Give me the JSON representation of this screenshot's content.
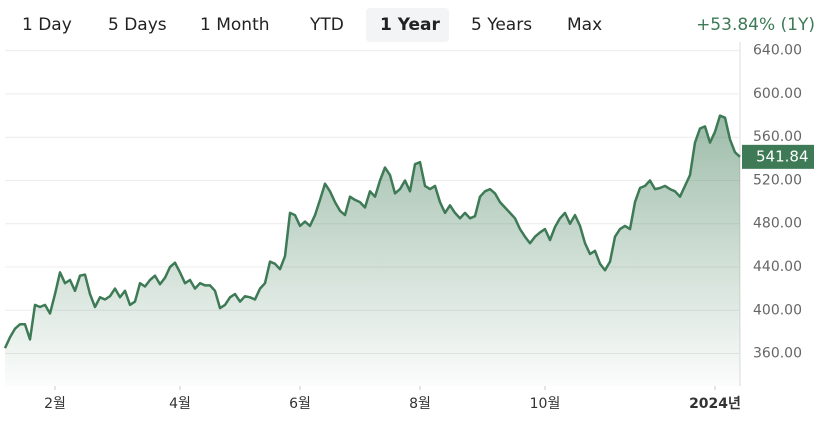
{
  "tabs": [
    "1 Day",
    "5 Days",
    "1 Month",
    "YTD",
    "1 Year",
    "5 Years",
    "Max"
  ],
  "active_tab": 4,
  "change": "+53.84% (1Y)",
  "chart_data": {
    "type": "line",
    "categories": [
      null,
      null,
      null,
      null,
      null,
      null,
      null,
      null,
      null,
      null,
      "2월",
      null,
      null,
      null,
      null,
      null,
      null,
      null,
      null,
      null,
      null,
      null,
      null,
      null,
      null,
      null,
      null,
      null,
      null,
      null,
      null,
      null,
      null,
      null,
      null,
      "4월",
      null,
      null,
      null,
      null,
      null,
      null,
      null,
      null,
      null,
      null,
      null,
      null,
      null,
      null,
      null,
      null,
      null,
      null,
      null,
      null,
      null,
      null,
      null,
      "6월",
      null,
      null,
      null,
      null,
      null,
      null,
      null,
      null,
      null,
      null,
      null,
      null,
      null,
      null,
      null,
      null,
      null,
      null,
      null,
      null,
      null,
      null,
      null,
      "8월",
      null,
      null,
      null,
      null,
      null,
      null,
      null,
      null,
      null,
      null,
      null,
      null,
      null,
      null,
      null,
      null,
      null,
      null,
      null,
      null,
      null,
      null,
      null,
      null,
      "10월",
      null,
      null,
      null,
      null,
      null,
      null,
      null,
      null,
      null,
      null,
      null,
      null,
      null,
      null,
      null,
      null,
      null,
      null,
      null,
      null,
      null,
      null,
      null,
      null,
      null,
      null,
      null,
      null,
      null,
      null,
      null,
      null,
      null,
      "2024년",
      null,
      null,
      null,
      null,
      null
    ],
    "series": [
      {
        "color": "#3d7a55",
        "values": [
          365,
          375,
          383,
          387,
          387,
          373,
          405,
          403,
          405,
          397,
          415,
          435,
          425,
          428,
          418,
          432,
          433,
          415,
          403,
          412,
          410,
          413,
          420,
          412,
          418,
          405,
          408,
          425,
          422,
          428,
          432,
          424,
          430,
          440,
          444,
          435,
          425,
          428,
          420,
          425,
          423,
          423,
          418,
          402,
          405,
          412,
          415,
          408,
          413,
          412,
          410,
          420,
          425,
          445,
          443,
          438,
          450,
          490,
          488,
          478,
          482,
          478,
          488,
          502,
          517,
          510,
          500,
          492,
          488,
          505,
          502,
          500,
          495,
          510,
          505,
          520,
          532,
          525,
          508,
          512,
          520,
          510,
          535,
          537,
          515,
          512,
          515,
          500,
          490,
          497,
          490,
          485,
          490,
          485,
          487,
          505,
          510,
          512,
          508,
          500,
          495,
          490,
          485,
          475,
          468,
          462,
          468,
          472,
          475,
          465,
          477,
          485,
          490,
          480,
          488,
          478,
          462,
          452,
          455,
          443,
          437,
          445,
          468,
          475,
          478,
          475,
          500,
          513,
          515,
          520,
          512,
          513,
          515,
          512,
          510,
          505,
          515,
          525,
          555,
          568,
          570,
          555,
          565,
          580,
          578,
          558,
          546,
          541.84
        ]
      }
    ],
    "ylim": [
      330,
      648
    ],
    "yticks": [
      {
        "value": 360,
        "label": "360.00"
      },
      {
        "value": 400,
        "label": "400.00"
      },
      {
        "value": 440,
        "label": "440.00"
      },
      {
        "value": 480,
        "label": "480.00"
      },
      {
        "value": 520,
        "label": "520.00"
      },
      {
        "value": 560,
        "label": "560.00"
      },
      {
        "value": 600,
        "label": "600.00"
      },
      {
        "value": 640,
        "label": "640.00"
      }
    ],
    "grid": true
  }
}
